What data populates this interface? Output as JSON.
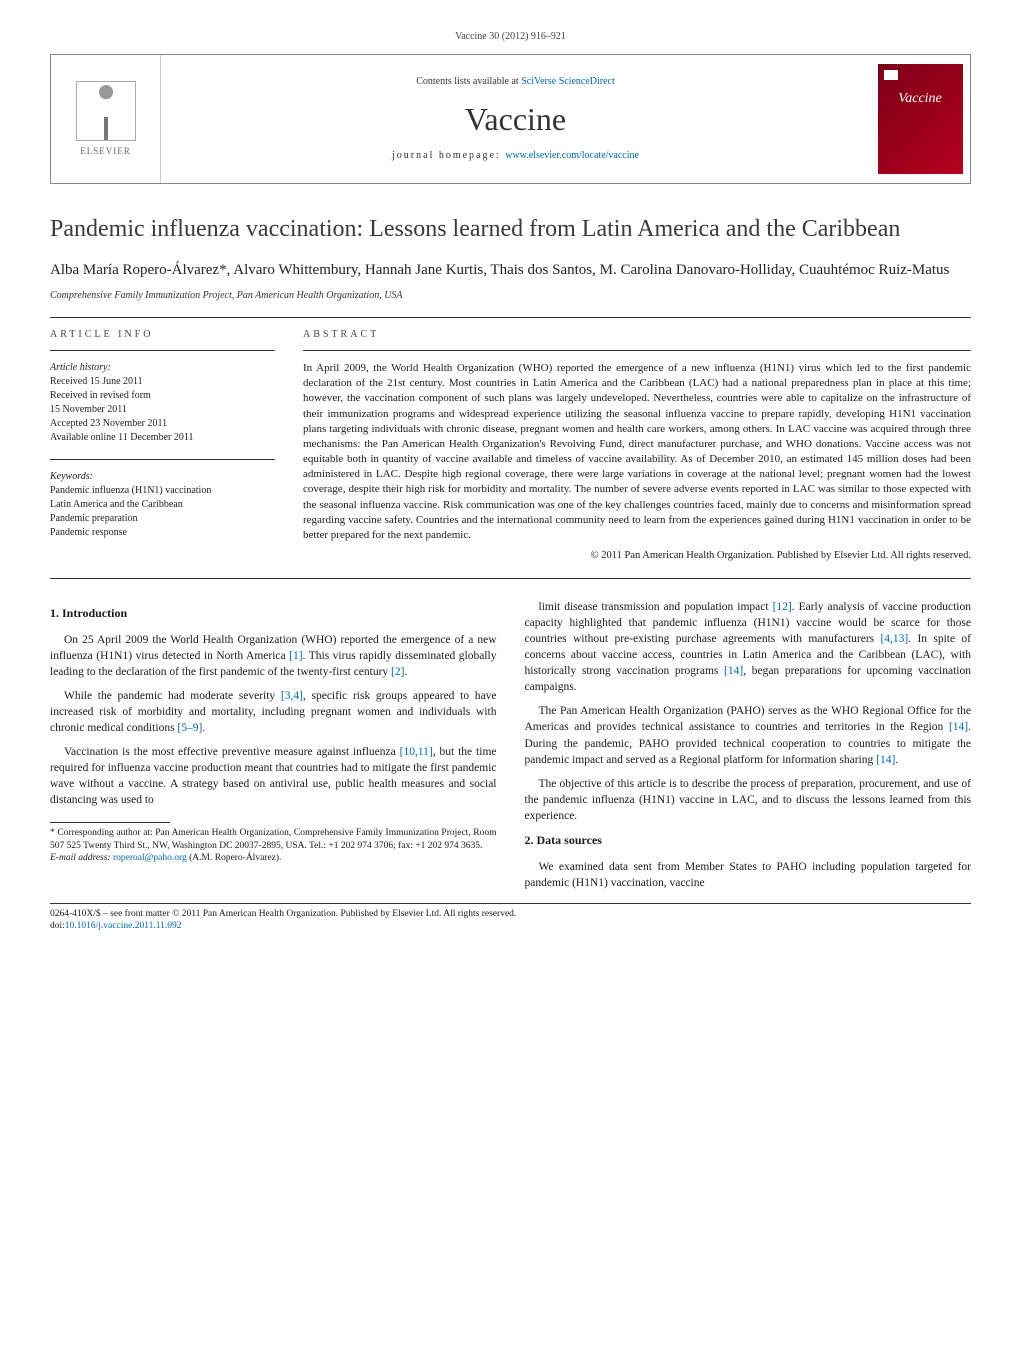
{
  "header": {
    "citation": "Vaccine 30 (2012) 916–921"
  },
  "masthead": {
    "publisher_name": "ELSEVIER",
    "contents_prefix": "Contents lists available at ",
    "contents_link": "SciVerse ScienceDirect",
    "journal_name": "Vaccine",
    "homepage_prefix": "journal homepage: ",
    "homepage_url": "www.elsevier.com/locate/vaccine",
    "cover_title": "Vaccine"
  },
  "article": {
    "title": "Pandemic influenza vaccination: Lessons learned from Latin America and the Caribbean",
    "authors": "Alba María Ropero-Álvarez*, Alvaro Whittembury, Hannah Jane Kurtis, Thais dos Santos, M. Carolina Danovaro-Holliday, Cuauhtémoc Ruiz-Matus",
    "affiliation": "Comprehensive Family Immunization Project, Pan American Health Organization, USA"
  },
  "info": {
    "label": "ARTICLE INFO",
    "history_label": "Article history:",
    "history": [
      "Received 15 June 2011",
      "Received in revised form",
      "15 November 2011",
      "Accepted 23 November 2011",
      "Available online 11 December 2011"
    ],
    "keywords_label": "Keywords:",
    "keywords": [
      "Pandemic influenza (H1N1) vaccination",
      "Latin America and the Caribbean",
      "Pandemic preparation",
      "Pandemic response"
    ]
  },
  "abstract": {
    "label": "ABSTRACT",
    "text": "In April 2009, the World Health Organization (WHO) reported the emergence of a new influenza (H1N1) virus which led to the first pandemic declaration of the 21st century. Most countries in Latin America and the Caribbean (LAC) had a national preparedness plan in place at this time; however, the vaccination component of such plans was largely undeveloped. Nevertheless, countries were able to capitalize on the infrastructure of their immunization programs and widespread experience utilizing the seasonal influenza vaccine to prepare rapidly, developing H1N1 vaccination plans targeting individuals with chronic disease, pregnant women and health care workers, among others. In LAC vaccine was acquired through three mechanisms: the Pan American Health Organization's Revolving Fund, direct manufacturer purchase, and WHO donations. Vaccine access was not equitable both in quantity of vaccine available and timeless of vaccine availability. As of December 2010, an estimated 145 million doses had been administered in LAC. Despite high regional coverage, there were large variations in coverage at the national level; pregnant women had the lowest coverage, despite their high risk for morbidity and mortality. The number of severe adverse events reported in LAC was similar to those expected with the seasonal influenza vaccine. Risk communication was one of the key challenges countries faced, mainly due to concerns and misinformation spread regarding vaccine safety. Countries and the international community need to learn from the experiences gained during H1N1 vaccination in order to be better prepared for the next pandemic.",
    "copyright": "© 2011 Pan American Health Organization. Published by Elsevier Ltd. All rights reserved."
  },
  "body": {
    "sec1_title": "1. Introduction",
    "p1": "On 25 April 2009 the World Health Organization (WHO) reported the emergence of a new influenza (H1N1) virus detected in North America [1]. This virus rapidly disseminated globally leading to the declaration of the first pandemic of the twenty-first century [2].",
    "p2": "While the pandemic had moderate severity [3,4], specific risk groups appeared to have increased risk of morbidity and mortality, including pregnant women and individuals with chronic medical conditions [5–9].",
    "p3": "Vaccination is the most effective preventive measure against influenza [10,11], but the time required for influenza vaccine production meant that countries had to mitigate the first pandemic wave without a vaccine. A strategy based on antiviral use, public health measures and social distancing was used to",
    "p4": "limit disease transmission and population impact [12]. Early analysis of vaccine production capacity highlighted that pandemic influenza (H1N1) vaccine would be scarce for those countries without pre-existing purchase agreements with manufacturers [4,13]. In spite of concerns about vaccine access, countries in Latin America and the Caribbean (LAC), with historically strong vaccination programs [14], began preparations for upcoming vaccination campaigns.",
    "p5": "The Pan American Health Organization (PAHO) serves as the WHO Regional Office for the Americas and provides technical assistance to countries and territories in the Region [14]. During the pandemic, PAHO provided technical cooperation to countries to mitigate the pandemic impact and served as a Regional platform for information sharing [14].",
    "p6": "The objective of this article is to describe the process of preparation, procurement, and use of the pandemic influenza (H1N1) vaccine in LAC, and to discuss the lessons learned from this experience.",
    "sec2_title": "2. Data sources",
    "p7": "We examined data sent from Member States to PAHO including population targeted for pandemic (H1N1) vaccination, vaccine"
  },
  "footnote": {
    "corr": "* Corresponding author at: Pan American Health Organization, Comprehensive Family Immunization Project, Room 507 525 Twenty Third St., NW, Washington DC 20037-2895, USA. Tel.: +1 202 974 3706; fax: +1 202 974 3635.",
    "email_label": "E-mail address: ",
    "email": "roperoal@paho.org",
    "email_suffix": " (A.M. Ropero-Álvarez)."
  },
  "footer": {
    "line1": "0264-410X/$ – see front matter © 2011 Pan American Health Organization. Published by Elsevier Ltd. All rights reserved.",
    "doi_prefix": "doi:",
    "doi": "10.1016/j.vaccine.2011.11.092"
  },
  "refs": {
    "r1": "[1]",
    "r2": "[2]",
    "r34": "[3,4]",
    "r59": "[5–9]",
    "r1011": "[10,11]",
    "r12": "[12]",
    "r413": "[4,13]",
    "r14a": "[14]",
    "r14b": "[14]",
    "r14c": "[14]"
  }
}
